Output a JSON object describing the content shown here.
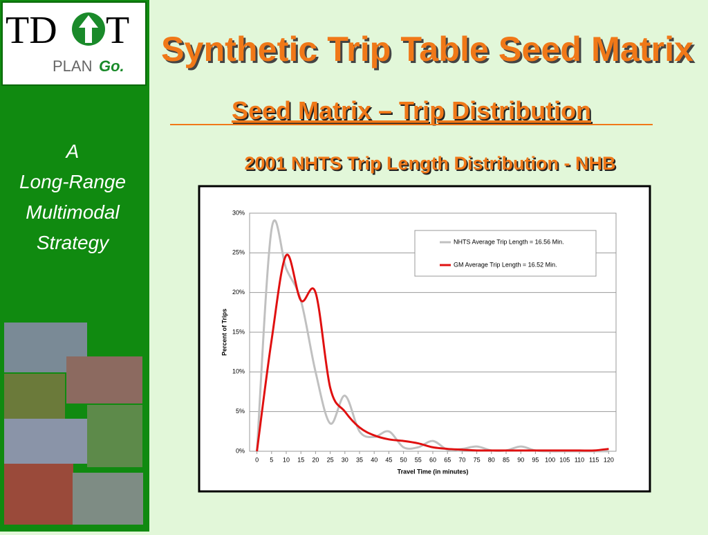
{
  "logo": {
    "left": "TD",
    "right": "T",
    "tagline": "PLAN",
    "tagline_emphasis": "Go."
  },
  "sidebar": {
    "lines": [
      "A",
      "Long-Range",
      "Multimodal",
      "Strategy"
    ]
  },
  "header": {
    "title": "Synthetic Trip Table Seed Matrix",
    "subtitle": "Seed Matrix – Trip Distribution"
  },
  "chart_data": {
    "type": "line",
    "title": "2001 NHTS Trip Length Distribution - NHB",
    "x_label": "Travel Time (in minutes)",
    "y_label": "Percent of Trips",
    "x": [
      0,
      5,
      10,
      15,
      20,
      25,
      30,
      35,
      40,
      45,
      50,
      55,
      60,
      65,
      70,
      75,
      80,
      85,
      90,
      95,
      100,
      105,
      110,
      115,
      120
    ],
    "xlim": [
      -2.5,
      122.5
    ],
    "xticks": [
      0,
      5,
      10,
      15,
      20,
      25,
      30,
      35,
      40,
      45,
      50,
      55,
      60,
      65,
      70,
      75,
      80,
      85,
      90,
      95,
      100,
      105,
      110,
      115,
      120
    ],
    "ylim": [
      0,
      30
    ],
    "yticks": [
      {
        "value": 0,
        "label": "0%"
      },
      {
        "value": 5,
        "label": "5%"
      },
      {
        "value": 10,
        "label": "10%"
      },
      {
        "value": 15,
        "label": "15%"
      },
      {
        "value": 20,
        "label": "20%"
      },
      {
        "value": 25,
        "label": "25%"
      },
      {
        "value": 30,
        "label": "30%"
      }
    ],
    "grid": true,
    "legend": "upper right",
    "smooth": true,
    "series": [
      {
        "name": "NHTS Average Trip Length =  16.56 Min.",
        "color": "#c0c0c0",
        "values": [
          0,
          28,
          23,
          19,
          10,
          3.5,
          7,
          2.5,
          1.8,
          2.5,
          0.5,
          0.5,
          1.3,
          0.2,
          0.3,
          0.6,
          0.1,
          0.1,
          0.6,
          0.1,
          0,
          0,
          0,
          0,
          0
        ]
      },
      {
        "name": "GM Average Trip Length = 16.52  Min.",
        "color": "#e01010",
        "values": [
          0,
          14,
          24.7,
          19,
          20,
          8,
          5,
          3,
          2,
          1.5,
          1.3,
          1,
          0.5,
          0.3,
          0.2,
          0.1,
          0.1,
          0.1,
          0.1,
          0.1,
          0.1,
          0.1,
          0.1,
          0.1,
          0.3
        ]
      }
    ]
  }
}
